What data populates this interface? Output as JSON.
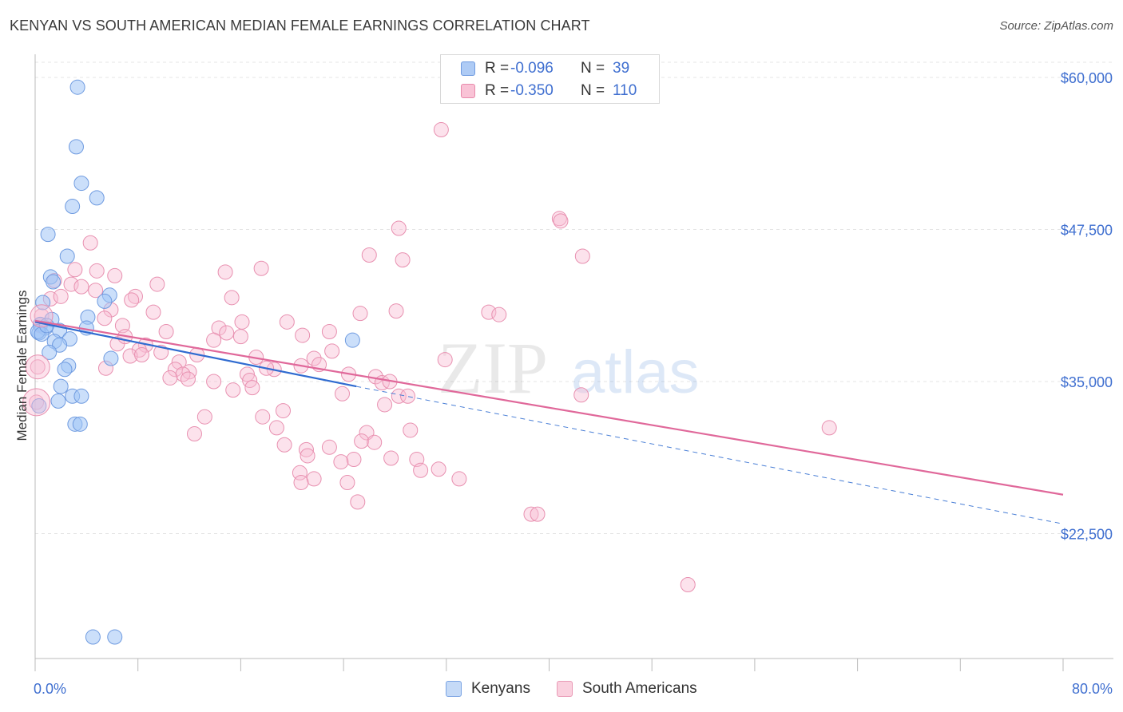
{
  "header": {
    "title": "KENYAN VS SOUTH AMERICAN MEDIAN FEMALE EARNINGS CORRELATION CHART",
    "source": "Source: ZipAtlas.com"
  },
  "watermark": {
    "zip": "ZIP",
    "atlas": "atlas"
  },
  "legend_top": {
    "rows": [
      {
        "r_label": "R =",
        "r_value": "-0.096",
        "n_label": "N =",
        "n_value": "39",
        "color": "#aecbf5",
        "border": "#6f9be0"
      },
      {
        "r_label": "R =",
        "r_value": "-0.350",
        "n_label": "N =",
        "n_value": "110",
        "color": "#f9c3d6",
        "border": "#e88aab"
      }
    ]
  },
  "legend_bottom": {
    "items": [
      {
        "label": "Kenyans"
      },
      {
        "label": "South Americans"
      }
    ]
  },
  "chart_data": {
    "type": "scatter",
    "title": "KENYAN VS SOUTH AMERICAN MEDIAN FEMALE EARNINGS CORRELATION CHART",
    "xlabel": "",
    "ylabel": "Median Female Earnings",
    "xlim": [
      0,
      80
    ],
    "ylim": [
      12000,
      62000
    ],
    "x_tick_labels": [
      "0.0%",
      "80.0%"
    ],
    "y_ticks": [
      22500,
      35000,
      47500,
      60000
    ],
    "y_tick_labels": [
      "$22,500",
      "$35,000",
      "$47,500",
      "$60,000"
    ],
    "grid": true,
    "legend_position": "top-center",
    "series": [
      {
        "name": "Kenyans",
        "color": "#8ab4f0",
        "trend": {
          "x": [
            0,
            25
          ],
          "y": [
            39900,
            34600
          ],
          "extended_to": [
            80,
            23300
          ]
        },
        "points": [
          [
            3.3,
            59200
          ],
          [
            3.2,
            54300
          ],
          [
            3.6,
            51300
          ],
          [
            4.8,
            50100
          ],
          [
            2.9,
            49400
          ],
          [
            1.0,
            47100
          ],
          [
            2.5,
            45300
          ],
          [
            1.2,
            43600
          ],
          [
            1.4,
            43200
          ],
          [
            5.8,
            42100
          ],
          [
            0.6,
            41500
          ],
          [
            5.4,
            41600
          ],
          [
            4.1,
            40300
          ],
          [
            1.3,
            40100
          ],
          [
            0.4,
            39700
          ],
          [
            0.8,
            39400
          ],
          [
            1.9,
            39200
          ],
          [
            0.3,
            39000
          ],
          [
            2.7,
            38500
          ],
          [
            1.5,
            38300
          ],
          [
            24.7,
            38400
          ],
          [
            1.9,
            38000
          ],
          [
            4.0,
            39400
          ],
          [
            1.1,
            37400
          ],
          [
            5.9,
            36900
          ],
          [
            2.6,
            36300
          ],
          [
            2.3,
            36000
          ],
          [
            2.0,
            34600
          ],
          [
            2.9,
            33800
          ],
          [
            3.6,
            33800
          ],
          [
            1.8,
            33400
          ],
          [
            3.1,
            31500
          ],
          [
            3.5,
            31500
          ],
          [
            0.3,
            33000
          ],
          [
            4.5,
            14000
          ],
          [
            6.2,
            14000
          ],
          [
            0.2,
            39100
          ],
          [
            0.5,
            38900
          ],
          [
            0.9,
            39600
          ]
        ]
      },
      {
        "name": "South Americans",
        "color": "#f4a7c2",
        "trend": {
          "x": [
            0,
            80
          ],
          "y": [
            40000,
            25700
          ]
        },
        "points": [
          [
            31.6,
            55700
          ],
          [
            40.8,
            48400
          ],
          [
            40.9,
            48200
          ],
          [
            28.3,
            47600
          ],
          [
            4.3,
            46400
          ],
          [
            26.0,
            45400
          ],
          [
            28.6,
            45000
          ],
          [
            42.6,
            45300
          ],
          [
            3.1,
            44200
          ],
          [
            4.8,
            44100
          ],
          [
            17.6,
            44300
          ],
          [
            14.8,
            44000
          ],
          [
            6.2,
            43700
          ],
          [
            2.8,
            43000
          ],
          [
            9.5,
            43000
          ],
          [
            4.7,
            42500
          ],
          [
            1.2,
            41800
          ],
          [
            2.0,
            42000
          ],
          [
            7.8,
            42000
          ],
          [
            15.3,
            41900
          ],
          [
            7.5,
            41700
          ],
          [
            5.9,
            40900
          ],
          [
            9.2,
            40700
          ],
          [
            25.3,
            40600
          ],
          [
            28.1,
            40800
          ],
          [
            35.3,
            40700
          ],
          [
            36.1,
            40500
          ],
          [
            5.4,
            40200
          ],
          [
            0.4,
            39600
          ],
          [
            16.1,
            39900
          ],
          [
            19.6,
            39900
          ],
          [
            6.8,
            39600
          ],
          [
            14.3,
            39400
          ],
          [
            10.2,
            39100
          ],
          [
            22.9,
            39100
          ],
          [
            16.0,
            38700
          ],
          [
            13.9,
            38400
          ],
          [
            6.4,
            38100
          ],
          [
            8.6,
            38000
          ],
          [
            8.1,
            37600
          ],
          [
            12.6,
            37200
          ],
          [
            7.4,
            37100
          ],
          [
            8.3,
            37200
          ],
          [
            17.2,
            37000
          ],
          [
            21.7,
            36900
          ],
          [
            31.9,
            36800
          ],
          [
            22.1,
            36400
          ],
          [
            20.7,
            36300
          ],
          [
            11.2,
            36600
          ],
          [
            5.5,
            36100
          ],
          [
            10.9,
            36000
          ],
          [
            18.6,
            36000
          ],
          [
            12.0,
            35800
          ],
          [
            11.5,
            35600
          ],
          [
            10.5,
            35300
          ],
          [
            24.4,
            35600
          ],
          [
            16.5,
            35600
          ],
          [
            26.5,
            35400
          ],
          [
            16.7,
            35100
          ],
          [
            13.9,
            35000
          ],
          [
            27.0,
            34900
          ],
          [
            27.6,
            35000
          ],
          [
            16.9,
            34500
          ],
          [
            15.4,
            34300
          ],
          [
            28.3,
            33800
          ],
          [
            29.0,
            33800
          ],
          [
            23.9,
            34000
          ],
          [
            42.5,
            33900
          ],
          [
            27.2,
            33100
          ],
          [
            19.3,
            32600
          ],
          [
            13.2,
            32100
          ],
          [
            17.7,
            32100
          ],
          [
            18.8,
            31200
          ],
          [
            29.2,
            31000
          ],
          [
            12.4,
            30700
          ],
          [
            25.8,
            30800
          ],
          [
            61.8,
            31200
          ],
          [
            25.4,
            30100
          ],
          [
            26.4,
            30000
          ],
          [
            19.4,
            29800
          ],
          [
            21.1,
            29400
          ],
          [
            22.9,
            29600
          ],
          [
            21.2,
            28900
          ],
          [
            24.8,
            28600
          ],
          [
            23.8,
            28400
          ],
          [
            27.7,
            28700
          ],
          [
            29.7,
            28600
          ],
          [
            30.0,
            27700
          ],
          [
            31.4,
            27800
          ],
          [
            20.6,
            27500
          ],
          [
            21.7,
            27000
          ],
          [
            33.0,
            27000
          ],
          [
            20.7,
            26700
          ],
          [
            24.3,
            26700
          ],
          [
            25.1,
            25100
          ],
          [
            38.6,
            24100
          ],
          [
            39.1,
            24100
          ],
          [
            50.8,
            18300
          ],
          [
            0.2,
            36200
          ],
          [
            0.5,
            40400
          ],
          [
            1.5,
            43300
          ],
          [
            3.6,
            42800
          ],
          [
            7.0,
            38700
          ],
          [
            9.8,
            37400
          ],
          [
            11.9,
            35200
          ],
          [
            14.9,
            39000
          ],
          [
            18.0,
            36100
          ],
          [
            20.8,
            38800
          ],
          [
            23.1,
            37500
          ],
          [
            0.1,
            33300
          ]
        ]
      }
    ]
  }
}
